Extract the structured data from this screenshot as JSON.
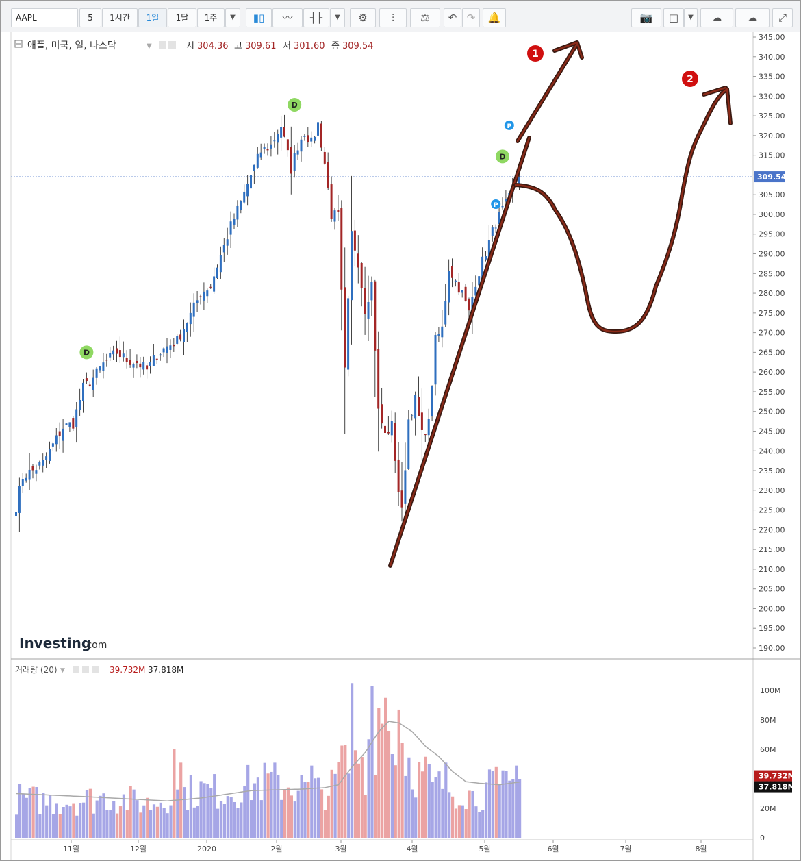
{
  "toolbar": {
    "symbol": "AAPL",
    "intervals": [
      "5",
      "1시간",
      "1일",
      "1달",
      "1주"
    ],
    "active_interval": "1일",
    "icons": [
      "dropdown-icon",
      "candlestick-icon",
      "area-chart-icon",
      "bar-chart-icon",
      "dropdown-icon",
      "gear-icon",
      "indicator-icon",
      "scale-icon",
      "undo-icon",
      "redo-icon",
      "alert-icon",
      "camera-icon",
      "color-box-icon",
      "dropdown-icon",
      "cloud-download-icon",
      "cloud-upload-icon",
      "fullscreen-icon"
    ]
  },
  "legend": {
    "name": "애플, 미국, 일, 나스닥",
    "open_label": "시",
    "open": "304.36",
    "high_label": "고",
    "high": "309.61",
    "low_label": "저",
    "low": "301.60",
    "close_label": "종",
    "close": "309.54",
    "price_tag": "309.54"
  },
  "volume_legend": {
    "name": "거래량 (20)",
    "value": "39.732M",
    "ma": "37.818M",
    "value_tag": "39.732M",
    "ma_tag": "37.818M"
  },
  "watermark": {
    "brand": "Investing",
    "suffix": ".com"
  },
  "annotations": {
    "marker1": "1",
    "marker2": "2"
  },
  "colors": {
    "up": "#2f6fbf",
    "down": "#a32626",
    "vol_up": "#a6a6e6",
    "vol_down": "#eba3a3",
    "drawing": "#4a1e14",
    "drawing_fill": "#8b2a18",
    "price_tag_bg": "#4a74c9",
    "vol_tag_bg": "#b71c1c"
  },
  "chart_data": [
    {
      "type": "candlestick",
      "title": "애플, 미국, 일, 나스닥",
      "y_ticks": [
        "190.00",
        "195.00",
        "200.00",
        "205.00",
        "210.00",
        "215.00",
        "220.00",
        "225.00",
        "230.00",
        "235.00",
        "240.00",
        "245.00",
        "250.00",
        "255.00",
        "260.00",
        "265.00",
        "270.00",
        "275.00",
        "280.00",
        "285.00",
        "290.00",
        "295.00",
        "300.00",
        "305.00",
        "310.00",
        "315.00",
        "320.00",
        "325.00",
        "330.00",
        "335.00",
        "340.00",
        "345.00"
      ],
      "ylim": [
        187,
        347
      ],
      "x_ticks": [
        "11월",
        "12월",
        "2020",
        "2월",
        "3월",
        "4월",
        "5월",
        "6월",
        "7월",
        "8월"
      ],
      "last_close": 309.54,
      "dividend_markers": [
        "D",
        "D",
        "D"
      ],
      "event_markers": [
        "P",
        "P"
      ],
      "anchors": [
        [
          0,
          226.0
        ],
        [
          2,
          233.5
        ],
        [
          5,
          235.0
        ],
        [
          8,
          237.0
        ],
        [
          11,
          241.5
        ],
        [
          14,
          246.0
        ],
        [
          17,
          247.0
        ],
        [
          20,
          256.0
        ],
        [
          23,
          258.5
        ],
        [
          26,
          262.0
        ],
        [
          30,
          265.0
        ],
        [
          33,
          263.0
        ],
        [
          36,
          262.5
        ],
        [
          39,
          260.5
        ],
        [
          42,
          264.5
        ],
        [
          45,
          266.5
        ],
        [
          48,
          268.0
        ],
        [
          52,
          274.5
        ],
        [
          55,
          280.0
        ],
        [
          58,
          282.0
        ],
        [
          61,
          289.5
        ],
        [
          64,
          297.0
        ],
        [
          67,
          303.0
        ],
        [
          70,
          310.0
        ],
        [
          73,
          316.0
        ],
        [
          76,
          317.5
        ],
        [
          79,
          322.5
        ],
        [
          82,
          311.5
        ],
        [
          84,
          317.5
        ],
        [
          86,
          321.0
        ],
        [
          88,
          318.0
        ],
        [
          90,
          323.0
        ],
        [
          92,
          313.0
        ],
        [
          94,
          300.0
        ],
        [
          96,
          299.5
        ],
        [
          98,
          260.0
        ],
        [
          100,
          295.0
        ],
        [
          102,
          288.0
        ],
        [
          104,
          276.0
        ],
        [
          106,
          282.5
        ],
        [
          108,
          250.0
        ],
        [
          110,
          244.0
        ],
        [
          112,
          246.5
        ],
        [
          114,
          230.0
        ],
        [
          115,
          224.5
        ],
        [
          117,
          248.0
        ],
        [
          119,
          253.0
        ],
        [
          121,
          244.0
        ],
        [
          123,
          247.0
        ],
        [
          125,
          268.0
        ],
        [
          127,
          271.0
        ],
        [
          129,
          286.5
        ],
        [
          131,
          283.0
        ],
        [
          133,
          280.0
        ],
        [
          135,
          275.0
        ],
        [
          137,
          283.0
        ],
        [
          139,
          288.0
        ],
        [
          141,
          293.0
        ],
        [
          143,
          298.0
        ],
        [
          145,
          301.0
        ],
        [
          147,
          304.0
        ],
        [
          149,
          308.0
        ],
        [
          150,
          309.54
        ]
      ],
      "volume": {
        "ylim": [
          0,
          110
        ],
        "y_ticks": [
          "0",
          "20M",
          "40M",
          "60M",
          "80M",
          "100M"
        ],
        "anchors": [
          [
            0,
            28
          ],
          [
            10,
            26
          ],
          [
            20,
            27
          ],
          [
            28,
            29
          ],
          [
            35,
            26
          ],
          [
            40,
            24
          ],
          [
            45,
            30
          ],
          [
            50,
            32
          ],
          [
            55,
            34
          ],
          [
            60,
            33
          ],
          [
            65,
            34
          ],
          [
            70,
            38
          ],
          [
            75,
            40
          ],
          [
            80,
            38
          ],
          [
            85,
            36
          ],
          [
            90,
            33
          ],
          [
            94,
            35
          ],
          [
            96,
            45
          ],
          [
            98,
            58
          ],
          [
            100,
            42
          ],
          [
            102,
            60
          ],
          [
            104,
            52
          ],
          [
            106,
            82
          ],
          [
            108,
            73
          ],
          [
            110,
            88
          ],
          [
            112,
            66
          ],
          [
            114,
            80
          ],
          [
            115,
            68
          ],
          [
            116,
            60
          ],
          [
            118,
            52
          ],
          [
            120,
            44
          ],
          [
            122,
            46
          ],
          [
            124,
            35
          ],
          [
            126,
            37
          ],
          [
            128,
            40
          ],
          [
            130,
            33
          ],
          [
            132,
            36
          ],
          [
            134,
            34
          ],
          [
            136,
            29
          ],
          [
            138,
            31
          ],
          [
            140,
            34
          ],
          [
            142,
            36
          ],
          [
            144,
            30
          ],
          [
            146,
            40
          ],
          [
            148,
            38
          ],
          [
            150,
            39.732
          ]
        ],
        "spikes": [
          [
            47,
            60
          ],
          [
            49,
            51
          ],
          [
            88,
            49
          ],
          [
            98,
            63
          ],
          [
            100,
            105
          ],
          [
            106,
            103
          ],
          [
            108,
            88
          ],
          [
            110,
            95
          ],
          [
            114,
            87
          ],
          [
            143,
            48
          ],
          [
            149,
            49
          ]
        ],
        "ma_anchors": [
          [
            0,
            30
          ],
          [
            20,
            28
          ],
          [
            45,
            25
          ],
          [
            55,
            27
          ],
          [
            70,
            32
          ],
          [
            85,
            33
          ],
          [
            92,
            34
          ],
          [
            96,
            36
          ],
          [
            100,
            48
          ],
          [
            104,
            58
          ],
          [
            108,
            72
          ],
          [
            111,
            79
          ],
          [
            114,
            78
          ],
          [
            118,
            72
          ],
          [
            122,
            62
          ],
          [
            126,
            55
          ],
          [
            130,
            45
          ],
          [
            134,
            38
          ],
          [
            138,
            37
          ],
          [
            144,
            36
          ],
          [
            150,
            37.818
          ]
        ]
      }
    }
  ]
}
